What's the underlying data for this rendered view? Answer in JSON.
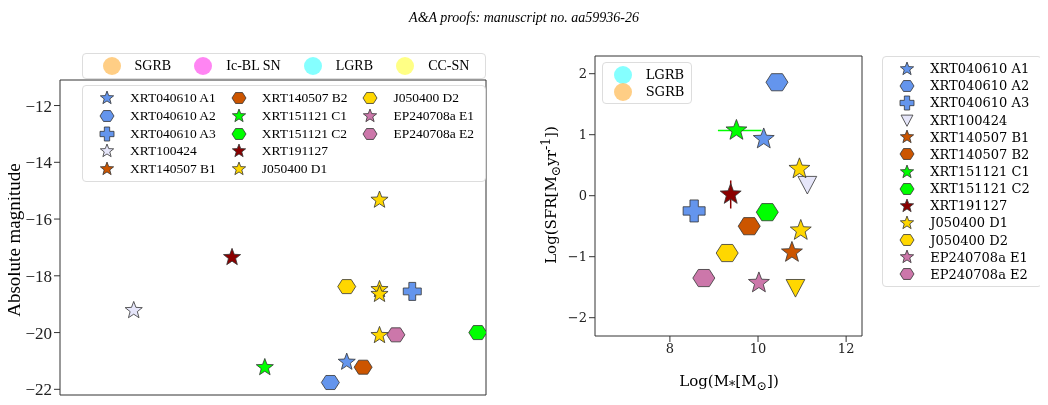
{
  "chart_data": [
    {
      "type": "scatter",
      "annotations": [
        "A&A proofs: manuscript no. aa59936-26"
      ],
      "ylabel": "Absolute magnitude",
      "categories": [
        null,
        null,
        null,
        null,
        null,
        null,
        null,
        null,
        null,
        null,
        null,
        null,
        null,
        null,
        null,
        null,
        null,
        null,
        null,
        null,
        null,
        null,
        null,
        null,
        null,
        null
      ],
      "ylim": [
        -22.2,
        -11.1
      ],
      "yticks": [
        {
          "value": -22,
          "label": "−22"
        },
        {
          "value": -20,
          "label": "−20"
        },
        {
          "value": -18,
          "label": "−18"
        },
        {
          "value": -16,
          "label": "−16"
        },
        {
          "value": -14,
          "label": "−14"
        },
        {
          "value": -12,
          "label": "−12"
        }
      ],
      "tick_labels": "y",
      "legend": "top",
      "series": [
        {
          "name": "SGRB",
          "type": "area",
          "color": "#ffc266",
          "marker": "circle",
          "values": [
            null,
            null,
            null,
            null,
            null,
            null,
            null,
            null,
            null,
            null,
            null,
            null,
            null,
            null,
            null,
            null,
            null,
            null,
            null,
            null,
            null,
            null,
            null,
            null,
            null,
            null
          ]
        },
        {
          "name": "Ic-BL SN",
          "type": "area",
          "color": "#ff66f0",
          "marker": "circle",
          "values": [
            null,
            null,
            null,
            null,
            null,
            null,
            null,
            null,
            null,
            null,
            null,
            null,
            null,
            null,
            null,
            null,
            null,
            null,
            null,
            null,
            null,
            null,
            null,
            null,
            null,
            null
          ]
        },
        {
          "name": "LGRB",
          "type": "area",
          "color": "#66ffff",
          "marker": "circle",
          "values": [
            null,
            null,
            null,
            null,
            null,
            null,
            null,
            null,
            null,
            null,
            null,
            null,
            null,
            null,
            null,
            null,
            null,
            null,
            null,
            null,
            null,
            null,
            null,
            null,
            null,
            null
          ]
        },
        {
          "name": "CC-SN",
          "type": "area",
          "color": "#ffff66",
          "marker": "circle",
          "values": [
            null,
            null,
            null,
            null,
            null,
            null,
            null,
            null,
            null,
            null,
            null,
            null,
            null,
            null,
            null,
            null,
            null,
            null,
            null,
            null,
            null,
            null,
            null,
            null,
            null,
            null
          ]
        },
        {
          "name": "XRT040610 A1",
          "color": "#6495ed",
          "marker": "star",
          "values": [
            null,
            null,
            null,
            null,
            null,
            null,
            null,
            null,
            null,
            null,
            null,
            null,
            null,
            null,
            null,
            null,
            null,
            -21.04,
            null,
            null,
            null,
            null,
            null,
            null,
            null,
            null
          ]
        },
        {
          "name": "XRT040610 A2",
          "color": "#6495ed",
          "values": [
            null,
            null,
            null,
            null,
            null,
            null,
            null,
            null,
            null,
            null,
            null,
            null,
            null,
            null,
            null,
            null,
            -21.76,
            null,
            null,
            null,
            null,
            null,
            null,
            null,
            null,
            null
          ]
        },
        {
          "name": "XRT040610 A3",
          "color": "#6495ed",
          "marker": "cross",
          "values": [
            null,
            null,
            null,
            null,
            null,
            null,
            null,
            null,
            null,
            null,
            null,
            null,
            null,
            null,
            null,
            null,
            null,
            null,
            null,
            null,
            null,
            -18.55,
            null,
            null,
            null,
            null
          ]
        },
        {
          "name": "XRT100424",
          "color": "#e6e6fa",
          "marker": "star",
          "values": [
            null,
            null,
            null,
            null,
            -19.22,
            null,
            null,
            null,
            null,
            null,
            null,
            null,
            null,
            null,
            null,
            null,
            null,
            null,
            null,
            null,
            null,
            null,
            null,
            null,
            null,
            null
          ]
        },
        {
          "name": "XRT140507 B1",
          "color": "#cc5500",
          "marker": "star",
          "values": [
            null,
            null,
            null,
            null,
            null,
            null,
            null,
            null,
            null,
            null,
            null,
            null,
            null,
            null,
            null,
            null,
            null,
            null,
            null,
            null,
            null,
            null,
            null,
            null,
            null,
            null
          ]
        },
        {
          "name": "XRT140507 B2",
          "color": "#cc5500",
          "values": [
            null,
            null,
            null,
            null,
            null,
            null,
            null,
            null,
            null,
            null,
            null,
            null,
            null,
            null,
            null,
            null,
            null,
            null,
            -21.22,
            null,
            null,
            null,
            null,
            null,
            null,
            null
          ]
        },
        {
          "name": "XRT151121 C1",
          "color": "#00ff00",
          "marker": "star",
          "values": [
            null,
            null,
            null,
            null,
            null,
            null,
            null,
            null,
            null,
            null,
            null,
            null,
            -21.23,
            null,
            null,
            null,
            null,
            null,
            null,
            null,
            null,
            null,
            null,
            null,
            null,
            null
          ]
        },
        {
          "name": "XRT151121 C2",
          "color": "#00ff00",
          "values": [
            null,
            null,
            null,
            null,
            null,
            null,
            null,
            null,
            null,
            null,
            null,
            null,
            null,
            null,
            null,
            null,
            null,
            null,
            null,
            null,
            null,
            null,
            null,
            null,
            null,
            -20.0
          ]
        },
        {
          "name": "XRT191127",
          "color": "#8b0000",
          "marker": "star",
          "values": [
            null,
            null,
            null,
            null,
            null,
            null,
            null,
            null,
            null,
            null,
            -17.35,
            null,
            null,
            null,
            null,
            null,
            null,
            null,
            null,
            null,
            null,
            null,
            null,
            null,
            null,
            null
          ]
        },
        {
          "name": "J050400 D1",
          "color": "#ffd700",
          "marker": "star",
          "values": [
            null,
            null,
            null,
            null,
            null,
            null,
            null,
            null,
            null,
            null,
            null,
            null,
            null,
            null,
            null,
            null,
            null,
            null,
            null,
            -15.33,
            null,
            null,
            null,
            null,
            null,
            null
          ]
        },
        {
          "color": "#ffd700",
          "marker": "star",
          "values": [
            null,
            null,
            null,
            null,
            null,
            null,
            null,
            null,
            null,
            null,
            null,
            null,
            null,
            null,
            null,
            null,
            null,
            null,
            null,
            -18.48,
            null,
            null,
            null,
            null,
            null,
            null
          ]
        },
        {
          "color": "#ffd700",
          "marker": "star",
          "values": [
            null,
            null,
            null,
            null,
            null,
            null,
            null,
            null,
            null,
            null,
            null,
            null,
            null,
            null,
            null,
            null,
            null,
            null,
            null,
            -18.65,
            null,
            null,
            null,
            null,
            null,
            null
          ]
        },
        {
          "color": "#ffd700",
          "marker": "star",
          "values": [
            null,
            null,
            null,
            null,
            null,
            null,
            null,
            null,
            null,
            null,
            null,
            null,
            null,
            null,
            null,
            null,
            null,
            null,
            null,
            -20.1,
            null,
            null,
            null,
            null,
            null,
            null
          ]
        },
        {
          "name": "J050400 D2",
          "color": "#ffd700",
          "values": [
            null,
            null,
            null,
            null,
            null,
            null,
            null,
            null,
            null,
            null,
            null,
            null,
            null,
            null,
            null,
            null,
            null,
            -18.38,
            null,
            null,
            null,
            null,
            null,
            null,
            null,
            null
          ]
        },
        {
          "name": "EP240708a E1",
          "color": "#cc77aa",
          "marker": "star",
          "values": [
            null,
            null,
            null,
            null,
            null,
            null,
            null,
            null,
            null,
            null,
            null,
            null,
            null,
            null,
            null,
            null,
            null,
            null,
            null,
            null,
            null,
            null,
            null,
            null,
            null,
            null
          ]
        },
        {
          "name": "EP240708a E2",
          "color": "#cc77aa",
          "values": [
            null,
            null,
            null,
            null,
            null,
            null,
            null,
            null,
            null,
            null,
            null,
            null,
            null,
            null,
            null,
            null,
            null,
            null,
            null,
            null,
            -20.08,
            null,
            null,
            null,
            null,
            null
          ]
        }
      ]
    },
    {
      "type": "scatter",
      "xlabel": "Log(M$_{*}$[M$_{⊙}$])",
      "ylabel": "Log(SFR[M$_{⊙}$yr$^{-1}$])",
      "xlim": [
        6.3,
        12.36
      ],
      "xticks": [
        8,
        10,
        12
      ],
      "ylim": [
        -2.3,
        2.29
      ],
      "yticks": [
        {
          "value": -2,
          "label": "−2"
        },
        {
          "value": -1,
          "label": "−1"
        },
        0,
        1,
        2
      ],
      "legend": "right",
      "series": [
        {
          "name": "LGRB",
          "type": "area",
          "color": "#66ffff",
          "marker": "circle"
        },
        {
          "name": "SGRB",
          "type": "area",
          "color": "#ffc266",
          "marker": "circle"
        },
        {
          "name": "XRT040610 A1",
          "color": "#6495ed",
          "marker": "star",
          "x": [
            10.13
          ],
          "values": [
            0.93
          ]
        },
        {
          "name": "XRT040610 A2",
          "color": "#6495ed",
          "x": [
            10.43
          ],
          "values": [
            1.86
          ]
        },
        {
          "name": "XRT040610 A3",
          "color": "#6495ed",
          "marker": "cross",
          "x": [
            8.55
          ],
          "values": [
            -0.25
          ]
        },
        {
          "name": "XRT100424",
          "color": "#e6e6fa",
          "marker": "triangle",
          "x": [
            11.12
          ],
          "values": [
            0.19
          ]
        },
        {
          "name": "XRT140507 B1",
          "color": "#cc5500",
          "marker": "star",
          "x": [
            10.77
          ],
          "values": [
            -0.93
          ]
        },
        {
          "name": "XRT140507 B2",
          "color": "#cc5500",
          "x": [
            9.8
          ],
          "values": [
            -0.5
          ]
        },
        {
          "name": "XRT151121 C1",
          "color": "#00ff00",
          "marker": "star",
          "x": [
            9.51
          ],
          "values": [
            1.07
          ],
          "xerrors": [
            [
              9.09,
              10.08
            ]
          ]
        },
        {
          "name": "XRT151121 C2",
          "color": "#00ff00",
          "x": [
            10.21
          ],
          "values": [
            -0.27
          ]
        },
        {
          "name": "XRT191127",
          "color": "#8b0000",
          "marker": "star",
          "x": [
            9.38
          ],
          "values": [
            0.02
          ],
          "errors": [
            0.23
          ]
        },
        {
          "name": "J050400 D1",
          "color": "#ffd700",
          "marker": "star",
          "x": [
            10.94,
            10.97
          ],
          "values": [
            0.44,
            -0.57
          ]
        },
        {
          "name": "J050400 D2",
          "color": "#ffd700",
          "x": [
            9.3
          ],
          "values": [
            -0.94
          ]
        },
        {
          "name": "EP240708a E1",
          "color": "#cc77aa",
          "marker": "star",
          "x": [
            10.02
          ],
          "values": [
            -1.43
          ]
        },
        {
          "name": "EP240708a E2",
          "color": "#cc77aa",
          "x": [
            8.77
          ],
          "values": [
            -1.35
          ]
        },
        {
          "color": "#ffd700",
          "marker": "triangle",
          "x": [
            10.85
          ],
          "values": [
            -1.5
          ]
        }
      ]
    }
  ]
}
